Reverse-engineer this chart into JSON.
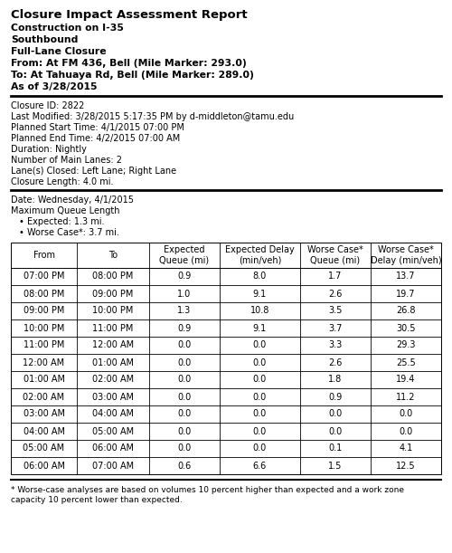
{
  "title": "Closure Impact Assessment Report",
  "header_lines": [
    "Construction on I-35",
    "Southbound",
    "Full-Lane Closure",
    "From: At FM 436, Bell (Mile Marker: 293.0)",
    "To: At Tahuaya Rd, Bell (Mile Marker: 289.0)",
    "As of 3/28/2015"
  ],
  "info_lines": [
    "Closure ID: 2822",
    "Last Modified: 3/28/2015 5:17:35 PM by d-middleton@tamu.edu",
    "Planned Start Time: 4/1/2015 07:00 PM",
    "Planned End Time: 4/2/2015 07:00 AM",
    "Duration: Nightly",
    "Number of Main Lanes: 2",
    "Lane(s) Closed: Left Lane; Right Lane",
    "Closure Length: 4.0 mi."
  ],
  "date_section_lines": [
    "Date: Wednesday, 4/1/2015",
    "Maximum Queue Length"
  ],
  "bullet_points": [
    "Expected: 1.3 mi.",
    "Worse Case*: 3.7 mi."
  ],
  "table_col_headers": [
    "From",
    "To",
    "Expected\nQueue (mi)",
    "Expected Delay\n(min/veh)",
    "Worse Case*\nQueue (mi)",
    "Worse Case*\nDelay (min/veh)"
  ],
  "table_data": [
    [
      "07:00 PM",
      "08:00 PM",
      "0.9",
      "8.0",
      "1.7",
      "13.7"
    ],
    [
      "08:00 PM",
      "09:00 PM",
      "1.0",
      "9.1",
      "2.6",
      "19.7"
    ],
    [
      "09:00 PM",
      "10:00 PM",
      "1.3",
      "10.8",
      "3.5",
      "26.8"
    ],
    [
      "10:00 PM",
      "11:00 PM",
      "0.9",
      "9.1",
      "3.7",
      "30.5"
    ],
    [
      "11:00 PM",
      "12:00 AM",
      "0.0",
      "0.0",
      "3.3",
      "29.3"
    ],
    [
      "12:00 AM",
      "01:00 AM",
      "0.0",
      "0.0",
      "2.6",
      "25.5"
    ],
    [
      "01:00 AM",
      "02:00 AM",
      "0.0",
      "0.0",
      "1.8",
      "19.4"
    ],
    [
      "02:00 AM",
      "03:00 AM",
      "0.0",
      "0.0",
      "0.9",
      "11.2"
    ],
    [
      "03:00 AM",
      "04:00 AM",
      "0.0",
      "0.0",
      "0.0",
      "0.0"
    ],
    [
      "04:00 AM",
      "05:00 AM",
      "0.0",
      "0.0",
      "0.0",
      "0.0"
    ],
    [
      "05:00 AM",
      "06:00 AM",
      "0.0",
      "0.0",
      "0.1",
      "4.1"
    ],
    [
      "06:00 AM",
      "07:00 AM",
      "0.6",
      "6.6",
      "1.5",
      "12.5"
    ]
  ],
  "footnote_line1": "* Worse-case analyses are based on volumes 10 percent higher than expected and a work zone",
  "footnote_line2": "capacity 10 percent lower than expected.",
  "bg_color": "#ffffff",
  "text_color": "#000000",
  "line_color": "#000000",
  "title_fontsize": 9.5,
  "header_fontsize": 7.8,
  "body_fontsize": 7.0,
  "table_fontsize": 7.0
}
